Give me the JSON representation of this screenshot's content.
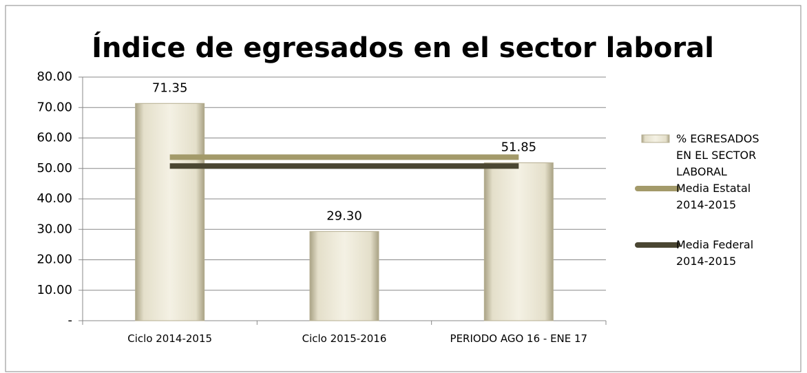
{
  "chart_data": {
    "type": "bar",
    "title": "Índice de egresados en el sector laboral",
    "categories": [
      "Ciclo 2014-2015",
      "Ciclo 2015-2016",
      "PERIODO AGO 16 - ENE 17"
    ],
    "series": [
      {
        "name": "% EGRESADOS EN EL SECTOR LABORAL",
        "type": "bar",
        "color": "#ece8d6",
        "values": [
          71.35,
          29.3,
          51.85
        ],
        "value_labels": [
          "71.35",
          "29.30",
          "51.85"
        ]
      },
      {
        "name": "Media Estatal 2014-2015",
        "type": "line",
        "color": "#a39a6a",
        "values": [
          53.7,
          53.7,
          53.7
        ]
      },
      {
        "name": "Media Federal 2014-2015",
        "type": "line",
        "color": "#4a4632",
        "values": [
          50.8,
          50.8,
          50.8
        ]
      }
    ],
    "ylim": [
      0,
      80
    ],
    "yticks": [
      {
        "value": 0,
        "label": "-"
      },
      {
        "value": 10,
        "label": "10.00"
      },
      {
        "value": 20,
        "label": "20.00"
      },
      {
        "value": 30,
        "label": "30.00"
      },
      {
        "value": 40,
        "label": "40.00"
      },
      {
        "value": 50,
        "label": "50.00"
      },
      {
        "value": 60,
        "label": "60.00"
      },
      {
        "value": 70,
        "label": "70.00"
      },
      {
        "value": 80,
        "label": "80.00"
      }
    ],
    "grid": true,
    "legend": "right"
  }
}
